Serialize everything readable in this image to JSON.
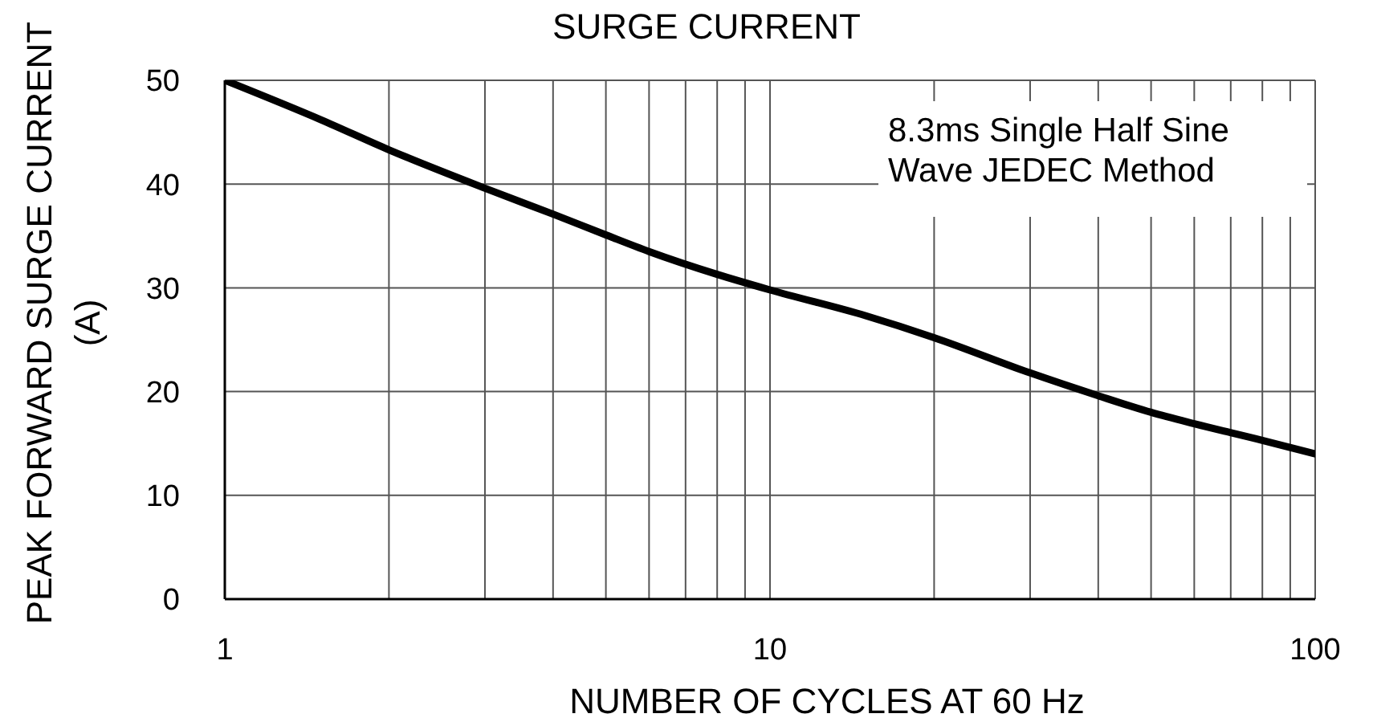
{
  "chart_data": {
    "type": "line",
    "title": "SURGE CURRENT",
    "xlabel": "NUMBER OF CYCLES AT 60 Hz",
    "ylabel": "PEAK FORWARD SURGE CURRENT\n(A)",
    "annotations": [
      "8.3ms Single Half Sine\nWave JEDEC Method"
    ],
    "x": [
      1,
      1.5,
      2,
      3,
      4,
      5,
      6,
      8,
      10,
      15,
      20,
      30,
      40,
      50,
      60,
      80,
      100
    ],
    "values": [
      50,
      46.2,
      43.3,
      39.6,
      37.1,
      35.1,
      33.5,
      31.3,
      29.8,
      27.3,
      25.2,
      21.8,
      19.6,
      18,
      16.9,
      15.3,
      14
    ],
    "color": "#000000",
    "log": "x",
    "xlim": [
      1,
      100
    ],
    "xticks": [
      1,
      {
        "value": 2,
        "label": null
      },
      {
        "value": 3,
        "label": null
      },
      {
        "value": 4,
        "label": null
      },
      {
        "value": 5,
        "label": null
      },
      {
        "value": 6,
        "label": null
      },
      {
        "value": 7,
        "label": null
      },
      {
        "value": 8,
        "label": null
      },
      {
        "value": 9,
        "label": null
      },
      10,
      {
        "value": 20,
        "label": null
      },
      {
        "value": 30,
        "label": null
      },
      {
        "value": 40,
        "label": null
      },
      {
        "value": 50,
        "label": null
      },
      {
        "value": 60,
        "label": null
      },
      {
        "value": 70,
        "label": null
      },
      {
        "value": 80,
        "label": null
      },
      {
        "value": 90,
        "label": null
      },
      100
    ],
    "ylim": [
      0,
      50
    ],
    "yticks": [
      0,
      10,
      20,
      30,
      40,
      50
    ],
    "grid": true,
    "marker": "none",
    "line_style": "solid"
  }
}
